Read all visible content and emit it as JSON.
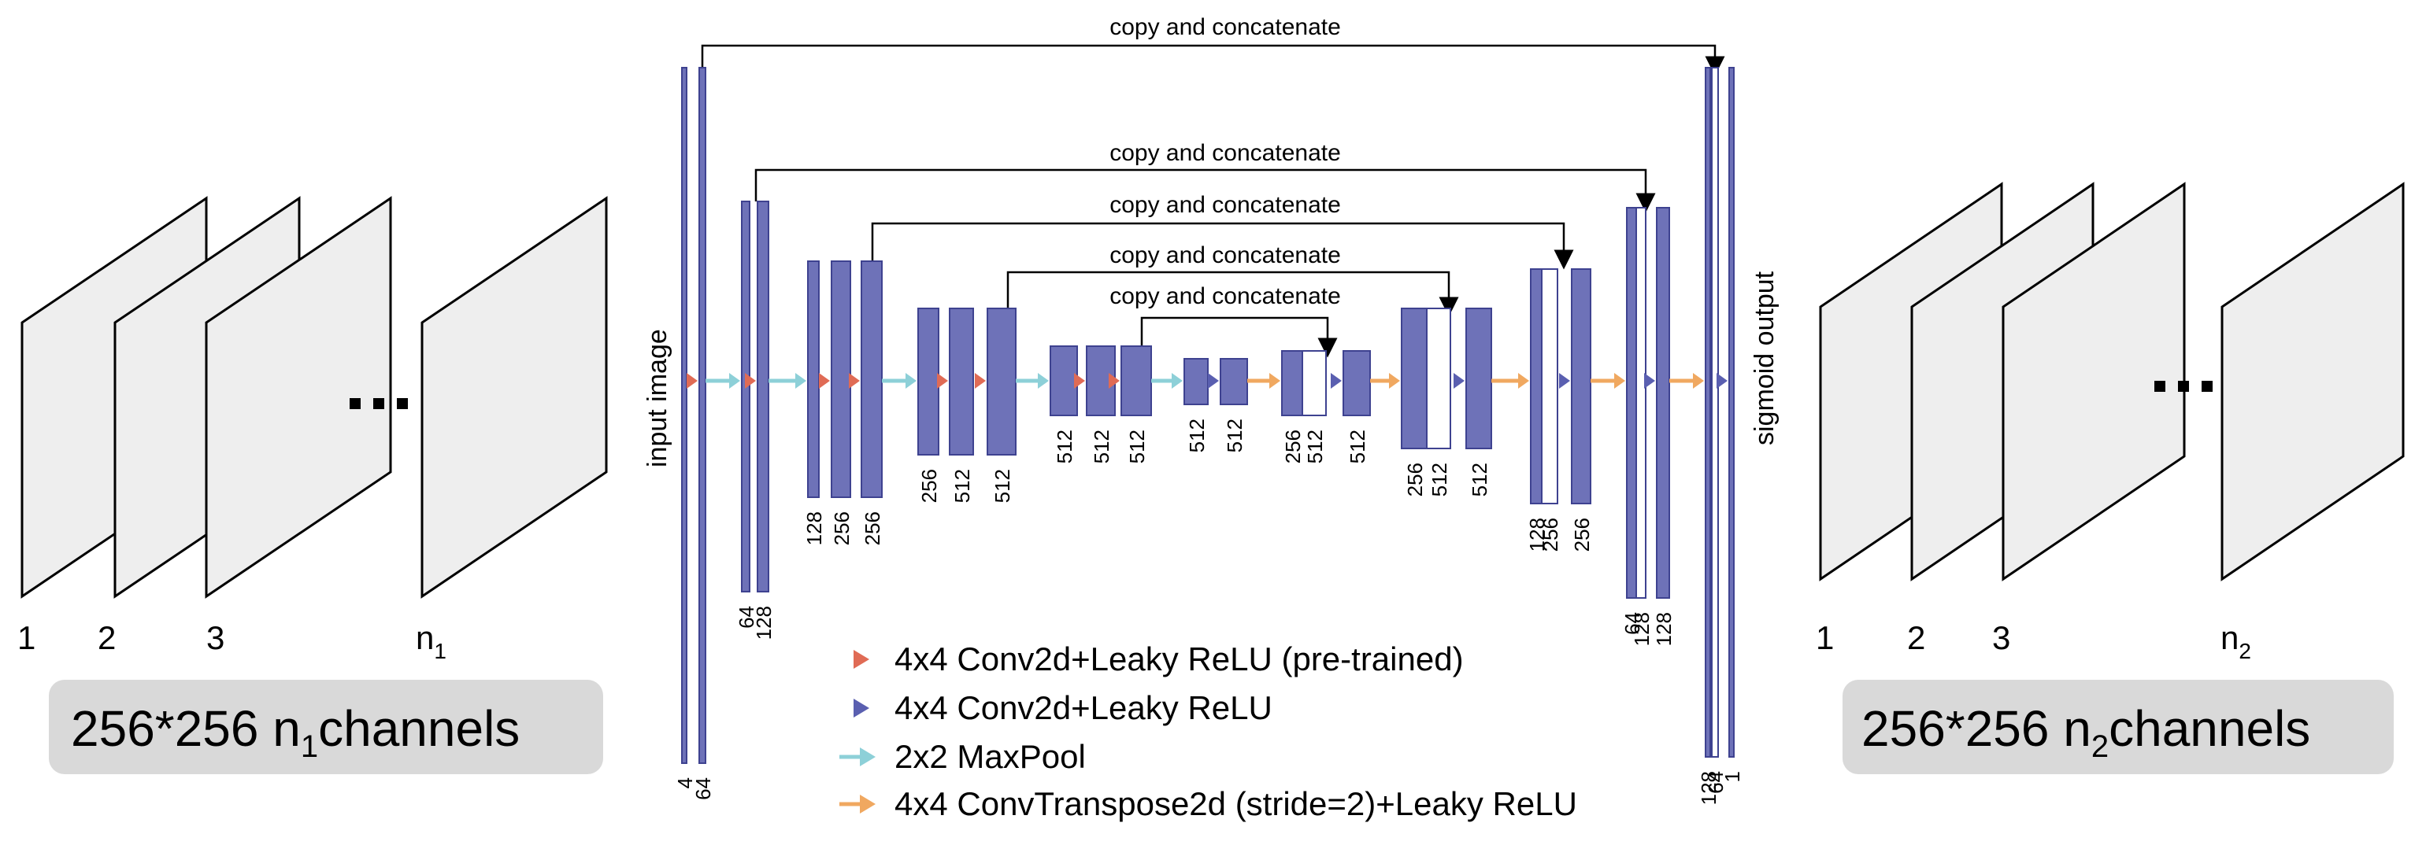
{
  "colors": {
    "layer": "#6e72b8",
    "layer_outline": "#3e4290",
    "concat_fill": "#ffffff",
    "arrow_pretrained": "#e06b55",
    "arrow_conv": "#5a5fb0",
    "arrow_maxpool": "#8dd0d8",
    "arrow_convtranspose": "#f0a860",
    "frame_fill": "#eeeeee",
    "caption_box": "#d9d9d9"
  },
  "input_stack": {
    "indices": [
      "1",
      "2",
      "3",
      "n",
      "1"
    ],
    "caption_main": "256*256  n",
    "caption_sub": "1",
    "caption_tail": "channels"
  },
  "output_stack": {
    "indices": [
      "1",
      "2",
      "3",
      "n",
      "2"
    ],
    "caption_main": "256*256  n",
    "caption_sub": "2",
    "caption_tail": "channels"
  },
  "side_labels": {
    "input": "input image",
    "output": "sigmoid output"
  },
  "skip_connections": [
    "copy and concatenate",
    "copy and concatenate",
    "copy and concatenate",
    "copy and concatenate",
    "copy and concatenate"
  ],
  "channel_labels": {
    "l0": [
      "4",
      "64"
    ],
    "l1": [
      "64",
      "128"
    ],
    "l2": [
      "128",
      "256",
      "256"
    ],
    "l3": [
      "256",
      "512",
      "512"
    ],
    "l4": [
      "512",
      "512",
      "512"
    ],
    "l5": [
      "512",
      "512"
    ],
    "r4": [
      "256",
      "512",
      "512"
    ],
    "r3": [
      "256",
      "512",
      "512"
    ],
    "r2": [
      "128",
      "256",
      "256"
    ],
    "r1": [
      "64",
      "128",
      "128"
    ],
    "r0": [
      "128",
      "64",
      "1"
    ]
  },
  "legend": [
    {
      "kind": "pretrained",
      "text": "4x4  Conv2d+Leaky ReLU (pre-trained)"
    },
    {
      "kind": "conv",
      "text": "4x4  Conv2d+Leaky ReLU"
    },
    {
      "kind": "maxpool",
      "text": "2x2  MaxPool"
    },
    {
      "kind": "convtranspose",
      "text": "4x4  ConvTranspose2d (stride=2)+Leaky ReLU"
    }
  ]
}
